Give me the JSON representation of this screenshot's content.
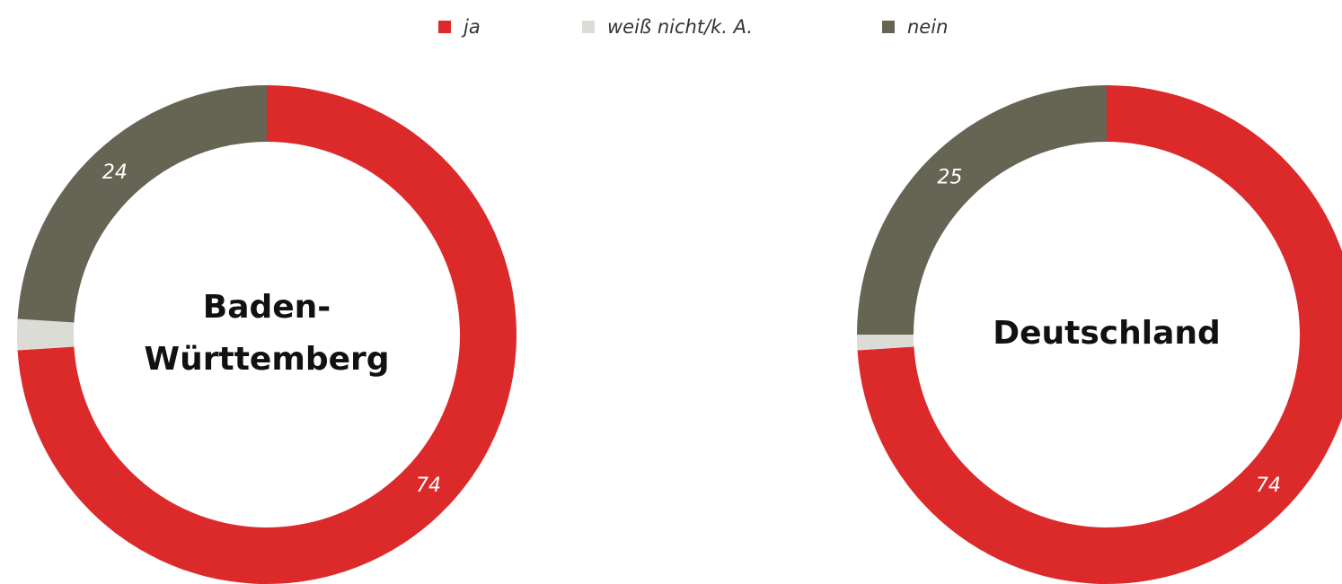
{
  "legend": {
    "labels": [
      "ja",
      "weiß nicht/k. A.",
      "nein"
    ],
    "colors": [
      "#dc2a2b",
      "#dcdcd6",
      "#666453"
    ]
  },
  "chart_data": [
    {
      "type": "donut",
      "title": [
        "Baden-",
        "Württemberg"
      ],
      "values": [
        74,
        2,
        24
      ]
    },
    {
      "type": "donut",
      "title": [
        "Deutschland"
      ],
      "values": [
        74,
        1,
        25
      ]
    }
  ]
}
